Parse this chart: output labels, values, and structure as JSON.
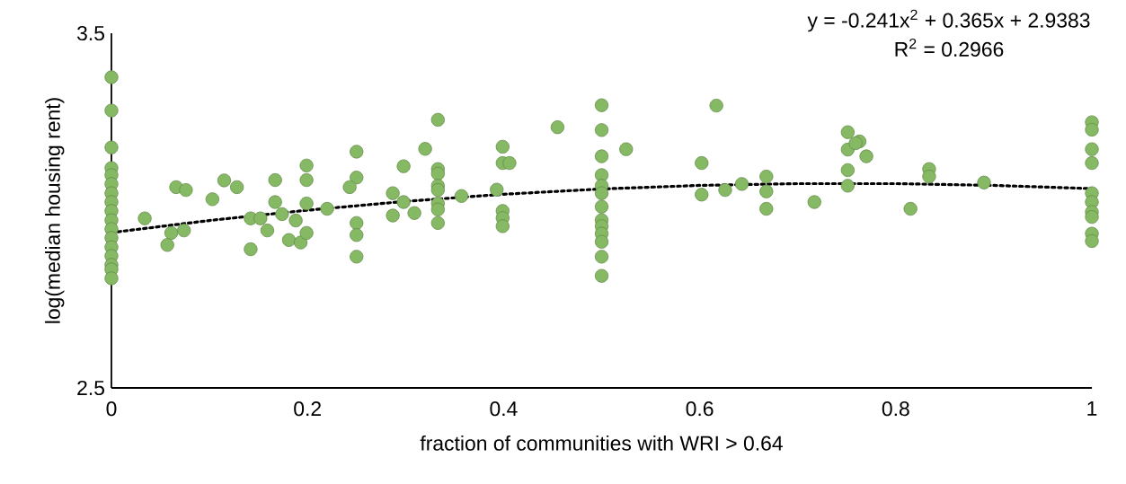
{
  "chart_data": {
    "type": "scatter",
    "xlabel": "fraction of communities with WRI > 0.64",
    "ylabel": "log(median housing rent)",
    "annotations": [
      "y = -0.241x$^{2}$ + 0.365x + 2.9383",
      "R$^{2}$ = 0.2966"
    ],
    "xlim": [
      0,
      1
    ],
    "ylim": [
      2.5,
      3.5
    ],
    "xticks": [
      0,
      0.2,
      0.4,
      0.6,
      0.8,
      1
    ],
    "yticks": [
      2.5,
      3.5
    ],
    "grid": false,
    "series": [
      {
        "color": "#85b963",
        "marker": "circle",
        "x": [
          0,
          0,
          0,
          0,
          0,
          0,
          0,
          0,
          0,
          0,
          0,
          0,
          0,
          0,
          0,
          0,
          0,
          0.034,
          0.061,
          0.057,
          0.074,
          0.066,
          0.076,
          0.103,
          0.115,
          0.128,
          0.142,
          0.152,
          0.142,
          0.159,
          0.167,
          0.167,
          0.174,
          0.188,
          0.181,
          0.193,
          0.199,
          0.199,
          0.199,
          0.199,
          0.22,
          0.25,
          0.25,
          0.243,
          0.25,
          0.25,
          0.25,
          0.287,
          0.287,
          0.298,
          0.298,
          0.309,
          0.32,
          0.333,
          0.333,
          0.333,
          0.333,
          0.333,
          0.333,
          0.333,
          0.333,
          0.357,
          0.399,
          0.399,
          0.406,
          0.393,
          0.399,
          0.399,
          0.399,
          0.455,
          0.5,
          0.5,
          0.5,
          0.5,
          0.5,
          0.5,
          0.5,
          0.5,
          0.5,
          0.5,
          0.5,
          0.5,
          0.5,
          0.525,
          0.617,
          0.602,
          0.602,
          0.626,
          0.643,
          0.668,
          0.668,
          0.668,
          0.717,
          0.751,
          0.751,
          0.763,
          0.759,
          0.77,
          0.751,
          0.751,
          0.815,
          0.834,
          0.834,
          0.89,
          1,
          1,
          1,
          1,
          1,
          1,
          1,
          1,
          1,
          1
        ],
        "values": [
          3.376,
          3.282,
          3.178,
          3.12,
          3.1,
          3.075,
          3.049,
          3.024,
          2.999,
          2.973,
          2.948,
          2.923,
          2.897,
          2.872,
          2.847,
          2.834,
          2.809,
          2.978,
          2.937,
          2.903,
          2.944,
          3.066,
          3.058,
          3.032,
          3.085,
          3.066,
          2.978,
          2.978,
          2.891,
          2.944,
          3.086,
          3.024,
          2.99,
          2.972,
          2.917,
          2.91,
          2.937,
          3.02,
          3.086,
          3.127,
          3.005,
          3.166,
          3.093,
          3.066,
          2.965,
          2.931,
          2.87,
          2.986,
          3.049,
          3.125,
          3.024,
          2.993,
          3.174,
          3.256,
          3.117,
          3.104,
          3.07,
          3.058,
          3.02,
          3.003,
          2.965,
          3.041,
          3.18,
          3.134,
          3.134,
          3.059,
          2.999,
          2.979,
          2.956,
          3.235,
          3.297,
          3.227,
          3.153,
          3.1,
          3.07,
          3.049,
          3.011,
          2.973,
          2.956,
          2.935,
          2.912,
          2.87,
          2.816,
          3.173,
          3.296,
          3.134,
          3.045,
          3.058,
          3.075,
          3.096,
          3.054,
          3.005,
          3.024,
          3.221,
          3.172,
          3.195,
          3.19,
          3.153,
          3.114,
          3.07,
          3.005,
          3.117,
          3.096,
          3.079,
          3.249,
          3.228,
          3.173,
          3.134,
          3.049,
          3.024,
          2.996,
          2.982,
          2.935,
          2.914
        ]
      },
      {
        "type": "line",
        "color": "#000000",
        "line_style": "dotted",
        "marker": "none",
        "x": [
          0,
          0.1,
          0.2,
          0.3,
          0.4,
          0.5,
          0.6,
          0.7,
          0.8,
          0.9,
          1
        ],
        "values": [
          2.938,
          2.972,
          3.001,
          3.026,
          3.046,
          3.061,
          3.071,
          3.076,
          3.076,
          3.071,
          3.062
        ]
      }
    ]
  }
}
